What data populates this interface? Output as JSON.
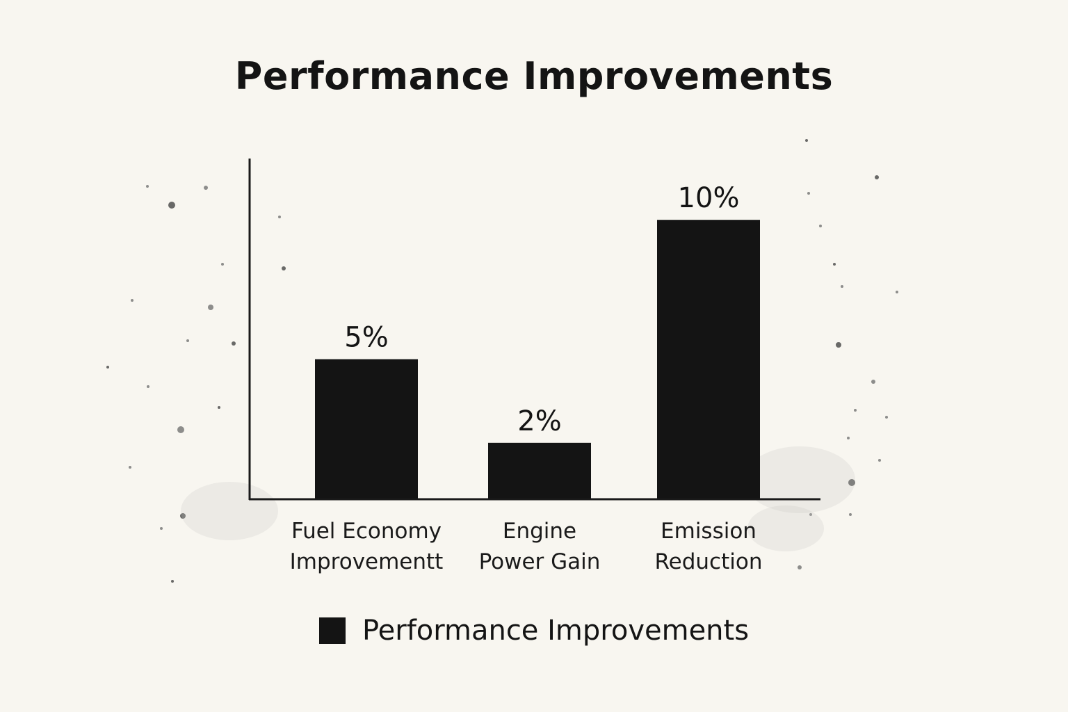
{
  "chart_data": {
    "type": "bar",
    "title": "Performance Improvements",
    "categories": [
      [
        "Fuel Economy",
        "Improvementt"
      ],
      [
        "Engine",
        "Power Gain"
      ],
      [
        "Emission",
        "Reduction"
      ]
    ],
    "series": [
      {
        "name": "Performance Improvements",
        "values": [
          5,
          2,
          10
        ],
        "data_labels": [
          "5%",
          "2%",
          "10%"
        ],
        "color": "#141414"
      }
    ],
    "ylim": [
      0,
      12.2
    ],
    "xlabel": "",
    "ylabel": "",
    "grid": false,
    "legend": "bottom-center"
  }
}
